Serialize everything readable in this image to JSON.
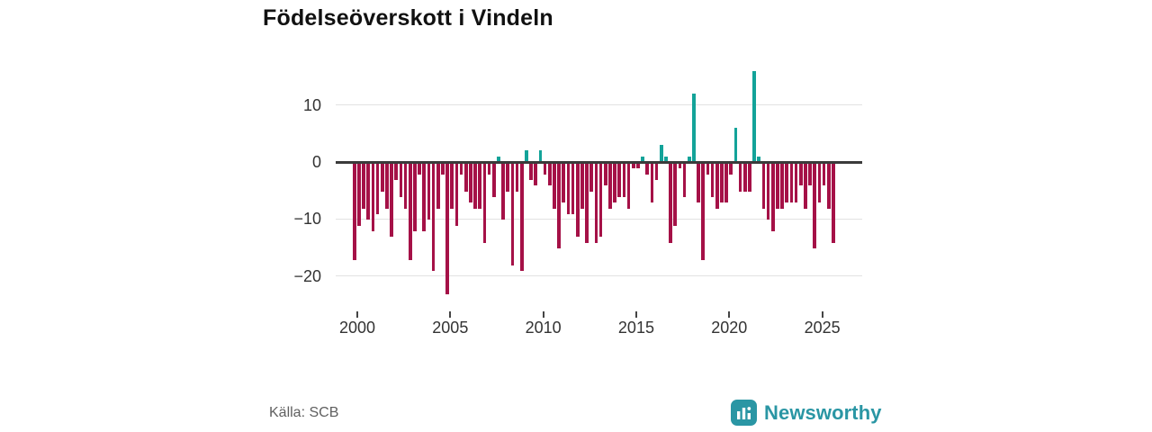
{
  "title": "Födelseöverskott i Vindeln",
  "source": "Källa: SCB",
  "brand": {
    "name": "Newsworthy"
  },
  "colors": {
    "negative": "#a51147",
    "positive": "#13a399",
    "brand_teal": "#2a96a4",
    "zero_line": "#3b3b3b",
    "gridline": "#e2e2e2",
    "text": "#333333",
    "muted_text": "#5f5f5f"
  },
  "chart_data": {
    "type": "bar",
    "title": "Födelseöverskott i Vindeln",
    "frequency": "quarterly",
    "start_period": "2000-Q1",
    "end_period": "2025-Q4",
    "values": [
      -17,
      -11,
      -8,
      -10,
      -12,
      -9,
      -5,
      -8,
      -13,
      -3,
      -6,
      -8,
      -17,
      -12,
      -2,
      -12,
      -10,
      -19,
      -8,
      -2,
      -23,
      -8,
      -11,
      -2,
      -5,
      -7,
      -8,
      -8,
      -14,
      -2,
      -6,
      1,
      -10,
      -5,
      -18,
      -5,
      -19,
      2,
      -3,
      -4,
      2,
      -2,
      -4,
      -8,
      -15,
      -7,
      -9,
      -9,
      -13,
      -8,
      -14,
      -5,
      -14,
      -13,
      -4,
      -8,
      -7,
      -6,
      -6,
      -8,
      -1,
      -1,
      1,
      -2,
      -7,
      -3,
      3,
      1,
      -14,
      -11,
      -1,
      -6,
      1,
      12,
      -7,
      -17,
      -2,
      -6,
      -8,
      -7,
      -7,
      -2,
      6,
      -5,
      -5,
      -5,
      16,
      1,
      -8,
      -10,
      -12,
      -8,
      -8,
      -7,
      -7,
      -7,
      -4,
      -8,
      -4,
      -15,
      -7,
      -4,
      -8,
      -14
    ],
    "yticks": {
      "values": [
        10,
        0,
        -10,
        -20
      ],
      "labels": [
        "10",
        "0",
        "−10",
        "−20"
      ]
    },
    "xticks": [
      2000,
      2005,
      2010,
      2015,
      2020,
      2025
    ],
    "ylim": [
      -26,
      17
    ],
    "grid": true,
    "legend": false,
    "xlabel": "",
    "ylabel": ""
  }
}
